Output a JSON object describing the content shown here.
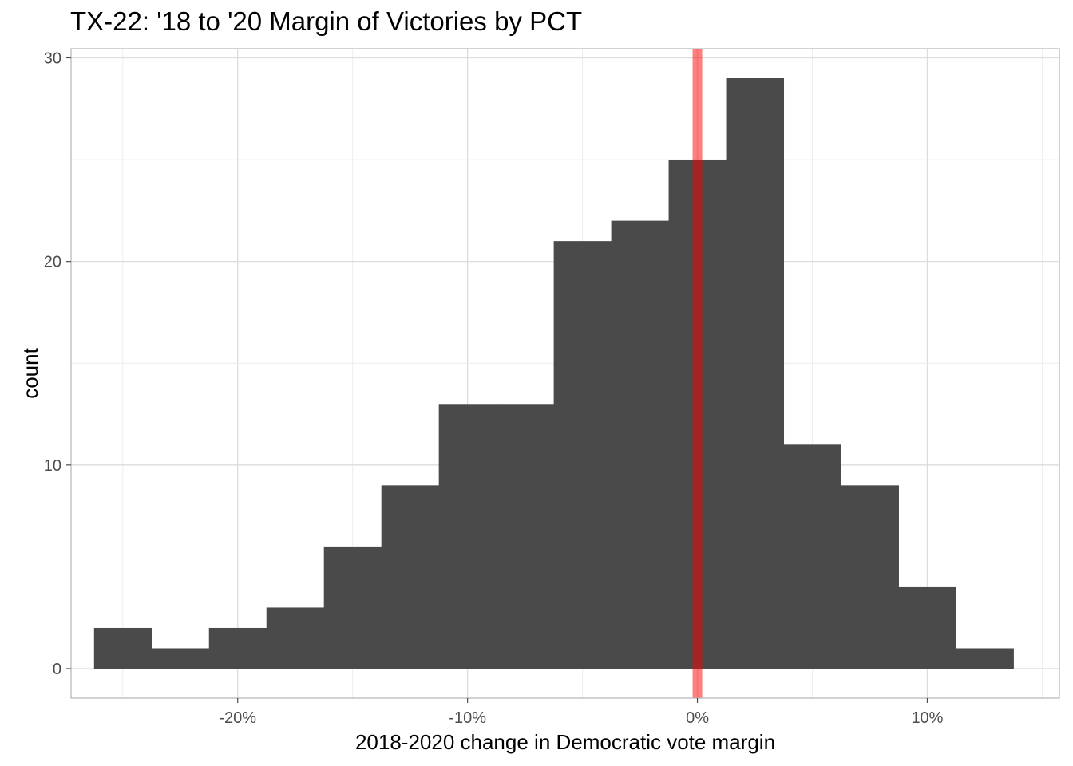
{
  "chart_data": {
    "type": "bar",
    "title": "TX-22: '18 to '20 Margin of Victories by PCT",
    "xlabel": "2018-2020 change in Democratic vote margin",
    "ylabel": "count",
    "bin_edges": [
      -26.25,
      -23.75,
      -21.25,
      -18.75,
      -16.25,
      -13.75,
      -11.25,
      -8.75,
      -6.25,
      -3.75,
      -1.25,
      1.25,
      3.75,
      6.25,
      8.75,
      11.25,
      13.75
    ],
    "values": [
      2,
      1,
      2,
      3,
      6,
      9,
      13,
      13,
      21,
      22,
      25,
      29,
      11,
      9,
      4,
      1
    ],
    "xlim": [
      -27.25,
      15.75
    ],
    "ylim": [
      -1.45,
      30.45
    ],
    "x_ticks": [
      -20,
      -10,
      0,
      10
    ],
    "x_tick_labels": [
      "-20%",
      "-10%",
      "0%",
      "10%"
    ],
    "y_ticks": [
      0,
      10,
      20,
      30
    ],
    "y_tick_labels": [
      "0",
      "10",
      "20",
      "30"
    ],
    "reference_line": {
      "x": 0,
      "color": "#ff0000",
      "opacity": 0.5
    },
    "bar_color": "#4a4a4a",
    "grid": true,
    "legend": "none"
  }
}
